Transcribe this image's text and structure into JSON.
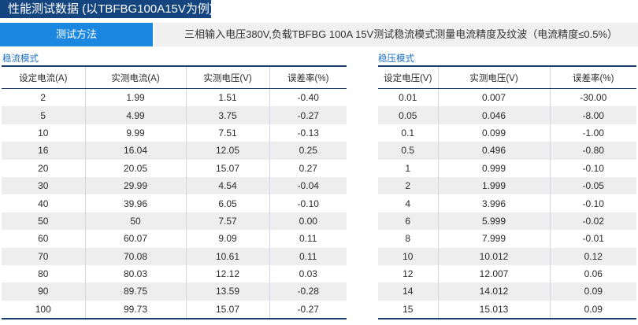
{
  "title": "性能测试数据 (以TBFBG100A15V为例)",
  "method": {
    "label": "测试方法",
    "value": "三相输入电压380V,负载TBFBG 100A 15V测试稳流模式测量电流精度及纹波（电流精度≤0.5%）"
  },
  "current_mode": {
    "title": "稳流模式",
    "headers": [
      "设定电流(A)",
      "实测电流(A)",
      "实测电压(V)",
      "误差率(%)"
    ],
    "rows": [
      [
        "2",
        "1.99",
        "1.51",
        "-0.40"
      ],
      [
        "5",
        "4.99",
        "3.75",
        "-0.27"
      ],
      [
        "10",
        "9.99",
        "7.51",
        "-0.13"
      ],
      [
        "16",
        "16.04",
        "12.05",
        "0.25"
      ],
      [
        "20",
        "20.05",
        "15.07",
        "0.27"
      ],
      [
        "30",
        "29.99",
        "4.54",
        "-0.04"
      ],
      [
        "40",
        "39.96",
        "6.05",
        "-0.10"
      ],
      [
        "50",
        "50",
        "7.57",
        "0.00"
      ],
      [
        "60",
        "60.07",
        "9.09",
        "0.11"
      ],
      [
        "70",
        "70.08",
        "10.61",
        "0.11"
      ],
      [
        "80",
        "80.03",
        "12.12",
        "0.03"
      ],
      [
        "90",
        "89.75",
        "13.59",
        "-0.28"
      ],
      [
        "100",
        "99.73",
        "15.07",
        "-0.27"
      ]
    ]
  },
  "voltage_mode": {
    "title": "稳压模式",
    "headers": [
      "设定电压(V)",
      "实测电压(V)",
      "误差率(%)"
    ],
    "rows": [
      [
        "0.01",
        "0.007",
        "-30.00"
      ],
      [
        "0.05",
        "0.046",
        "-8.00"
      ],
      [
        "0.1",
        "0.099",
        "-1.00"
      ],
      [
        "0.5",
        "0.496",
        "-0.80"
      ],
      [
        "1",
        "0.999",
        "-0.10"
      ],
      [
        "2",
        "1.999",
        "-0.05"
      ],
      [
        "4",
        "3.996",
        "-0.10"
      ],
      [
        "6",
        "5.999",
        "-0.02"
      ],
      [
        "8",
        "7.999",
        "-0.01"
      ],
      [
        "10",
        "10.012",
        "0.12"
      ],
      [
        "12",
        "12.007",
        "0.06"
      ],
      [
        "14",
        "14.012",
        "0.09"
      ],
      [
        "15",
        "15.013",
        "0.09"
      ]
    ]
  }
}
